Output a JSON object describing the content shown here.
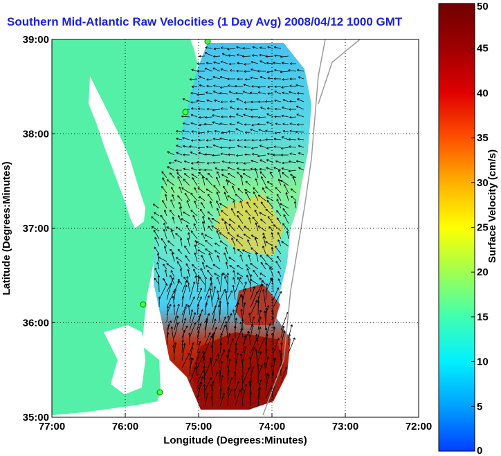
{
  "title": "Southern Mid-Atlantic Raw Velocities (1 Day Avg) 2008/04/12 1000 GMT",
  "map": {
    "x_axis": {
      "label": "Longitude (Degrees:Minutes)",
      "ticks": [
        "77:00",
        "76:00",
        "75:00",
        "74:00",
        "73:00",
        "72:00"
      ]
    },
    "y_axis": {
      "label": "Latitude (Degrees:Minutes)",
      "ticks": [
        "39:00",
        "38:00",
        "37:00",
        "36:00",
        "35:00"
      ]
    },
    "grid": "dotted",
    "land_color": "#55f0a8",
    "sea_color": "#ffffff"
  },
  "colorbar": {
    "label": "Surface Velocity (cm/s)",
    "ticks": [
      "50",
      "45",
      "40",
      "35",
      "30",
      "25",
      "20",
      "15",
      "10",
      "5",
      "0"
    ],
    "min": 0,
    "max": 50,
    "colors": [
      "#0040ff",
      "#00a0ff",
      "#00f0ff",
      "#40ffb0",
      "#a0ff50",
      "#ffff00",
      "#ffb000",
      "#ff5000",
      "#e00000",
      "#a00000",
      "#700000"
    ]
  }
}
